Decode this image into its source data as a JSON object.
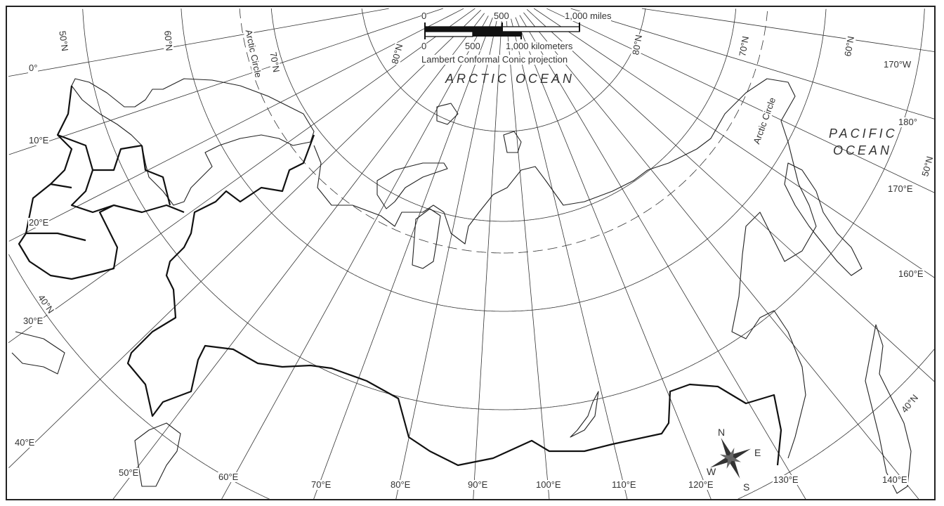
{
  "map": {
    "projection_label": "Lambert Conformal Conic projection",
    "scale": {
      "miles": {
        "zero": "0",
        "mid": "500",
        "end": "1,000 miles"
      },
      "km": {
        "zero": "0",
        "mid": "500",
        "end": "1,000 kilometers"
      }
    },
    "water_labels": {
      "arctic": "ARCTIC OCEAN",
      "pacific_line1": "PACIFIC",
      "pacific_line2": "OCEAN"
    },
    "arctic_circle_label": "Arctic Circle",
    "longitude_labels": [
      "0°",
      "10°E",
      "20°E",
      "30°E",
      "40°E",
      "50°E",
      "60°E",
      "70°E",
      "80°E",
      "90°E",
      "100°E",
      "110°E",
      "120°E",
      "130°E",
      "140°E",
      "160°E",
      "170°E",
      "180°",
      "170°W"
    ],
    "latitude_labels": {
      "n50": "50°N",
      "n60": "60°N",
      "n70": "70°N",
      "n80": "80°N",
      "n40": "40°N"
    },
    "compass": {
      "n": "N",
      "e": "E",
      "s": "S",
      "w": "W"
    },
    "graticule": {
      "meridians_deg_e": [
        0,
        10,
        20,
        30,
        40,
        50,
        60,
        70,
        80,
        90,
        100,
        110,
        120,
        130,
        140,
        150,
        160,
        170,
        180,
        190
      ],
      "parallels_deg_n": [
        80,
        70,
        60,
        50,
        40
      ],
      "arctic_circle_deg_n": 66.5
    },
    "colors": {
      "line": "#333333",
      "border": "#111111",
      "background": "#ffffff"
    }
  }
}
